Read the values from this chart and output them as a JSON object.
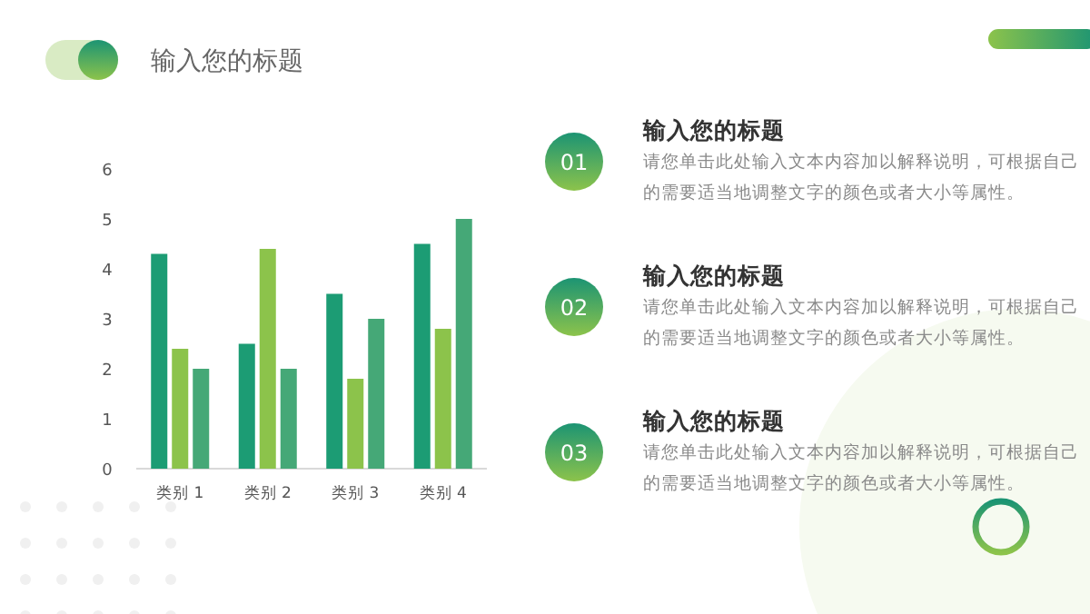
{
  "chart_data": {
    "type": "bar",
    "title": "输入您的标题",
    "categories": [
      "类别 1",
      "类别 2",
      "类别 3",
      "类别 4"
    ],
    "series": [
      {
        "color": "#1c9c74",
        "values": [
          4.3,
          2.5,
          3.5,
          4.5
        ]
      },
      {
        "color": "#8cc34b",
        "values": [
          2.4,
          4.4,
          1.8,
          2.8
        ]
      },
      {
        "color": "#45a877",
        "values": [
          2,
          2,
          3,
          5
        ]
      }
    ],
    "ylim": [
      0,
      6
    ],
    "yticks": [
      0,
      1,
      2,
      3,
      4,
      5,
      6
    ],
    "grid": false,
    "annotations": [
      "01",
      "输入您的标题",
      "请您单击此处输入文本内容加以解释说明，可根据自己的需要适当地调整文字的颜色或者大小等属性。",
      "02",
      "输入您的标题",
      "请您单击此处输入文本内容加以解释说明，可根据自己的需要适当地调整文字的颜色或者大小等属性。",
      "03",
      "输入您的标题",
      "请您单击此处输入文本内容加以解释说明，可根据自己的需要适当地调整文字的颜色或者大小等属性。"
    ]
  }
}
